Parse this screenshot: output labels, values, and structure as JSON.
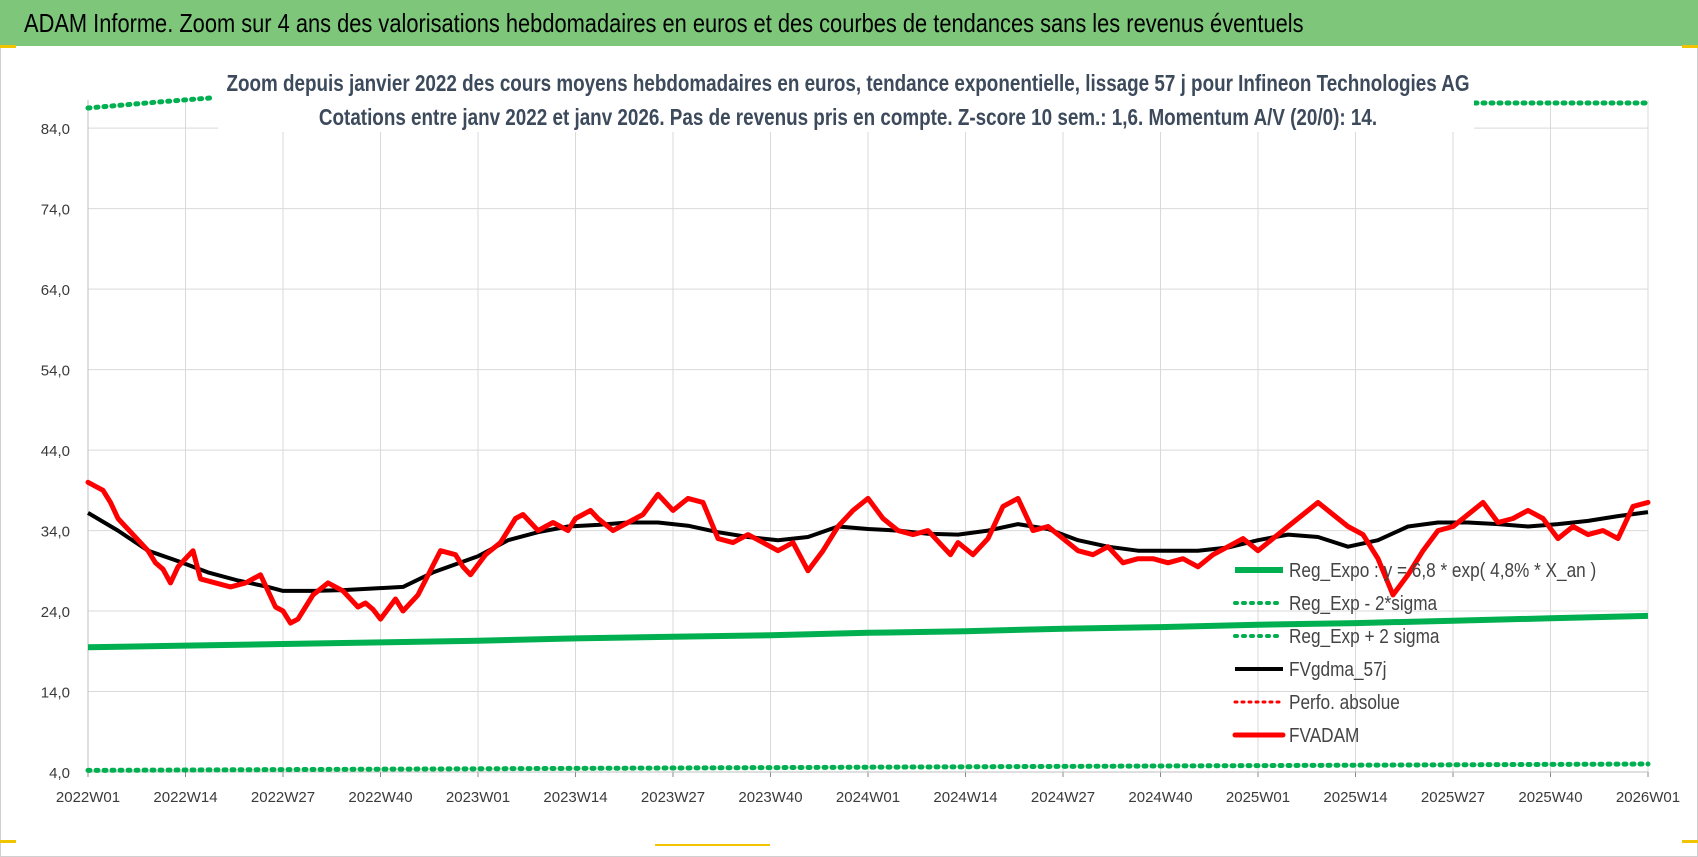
{
  "banner": {
    "title": "ADAM Informe. Zoom sur 4 ans des valorisations hebdomadaires en euros et des courbes de tendances sans les revenus éventuels"
  },
  "colors": {
    "banner_bg": "#7dc67a",
    "reg_expo": "#00b050",
    "fvgdma": "#000000",
    "fvadam": "#ff0000",
    "perfo": "#ff0000",
    "grid": "#d9d9d9",
    "title_text": "#3c4a5c"
  },
  "chart_data": {
    "type": "line",
    "title": "Zoom depuis janvier 2022 des cours moyens hebdomadaires en euros, tendance exponentielle, lissage 57 j pour Infineon Technologies AG",
    "subtitle": "Cotations entre janv 2022 et janv 2026. Pas de revenus pris en compte. Z-score 10 sem.: 1,6. Momentum A/V (20/0): 14.",
    "xlabel": "",
    "ylabel": "",
    "ylim": [
      4.0,
      87.5
    ],
    "y_ticks": [
      "84,0",
      "74,0",
      "64,0",
      "54,0",
      "44,0",
      "34,0",
      "24,0",
      "14,0",
      "4,0"
    ],
    "y_tick_values": [
      84,
      74,
      64,
      54,
      44,
      34,
      24,
      14,
      4
    ],
    "x_range_weeks": [
      0,
      208
    ],
    "x_ticks": [
      "2022W01",
      "2022W14",
      "2022W27",
      "2022W40",
      "2023W01",
      "2023W14",
      "2023W27",
      "2023W40",
      "2024W01",
      "2024W14",
      "2024W27",
      "2024W40",
      "2025W01",
      "2025W14",
      "2025W27",
      "2025W40",
      "2026W01"
    ],
    "grid": true,
    "legend_position": "center-right",
    "series": [
      {
        "name": "Reg_Expo : y = 6,8 * exp( 4,8% *  X_an )",
        "style": "solid-green",
        "x": [
          0,
          13,
          26,
          39,
          52,
          65,
          78,
          91,
          104,
          117,
          130,
          143,
          156,
          169,
          182,
          195,
          208
        ],
        "values": [
          19.5,
          19.7,
          19.9,
          20.1,
          20.3,
          20.6,
          20.8,
          21.0,
          21.3,
          21.5,
          21.8,
          22.0,
          22.3,
          22.5,
          22.8,
          23.1,
          23.4
        ]
      },
      {
        "name": "Reg_Exp - 2*sigma",
        "style": "dotted-green",
        "x": [
          0,
          26,
          52,
          78,
          104,
          130,
          156,
          182,
          208
        ],
        "values": [
          4.2,
          4.3,
          4.4,
          4.5,
          4.6,
          4.7,
          4.8,
          4.9,
          5.0
        ]
      },
      {
        "name": "Reg_Exp + 2 sigma",
        "style": "dotted-green",
        "x": [
          0,
          5,
          10,
          17
        ],
        "values": [
          86.5,
          86.9,
          87.3,
          87.8
        ]
      },
      {
        "name": "FVgdma_57j",
        "style": "solid-black",
        "x": [
          0,
          4,
          8,
          12,
          16,
          20,
          24,
          26,
          30,
          34,
          38,
          42,
          46,
          52,
          56,
          60,
          64,
          68,
          72,
          76,
          80,
          84,
          88,
          92,
          96,
          100,
          104,
          108,
          112,
          116,
          120,
          124,
          128,
          132,
          136,
          140,
          144,
          148,
          152,
          156,
          160,
          164,
          168,
          172,
          176,
          180,
          184,
          188,
          192,
          196,
          200,
          204,
          208
        ],
        "values": [
          36.2,
          34.0,
          31.5,
          30.2,
          28.8,
          27.8,
          27.0,
          26.5,
          26.5,
          26.6,
          26.8,
          27.0,
          28.8,
          30.8,
          32.8,
          33.8,
          34.5,
          34.7,
          35.0,
          35.0,
          34.6,
          33.8,
          33.2,
          32.8,
          33.2,
          34.5,
          34.2,
          34.0,
          33.6,
          33.5,
          34.0,
          34.8,
          34.2,
          32.8,
          32.0,
          31.5,
          31.5,
          31.5,
          31.9,
          32.8,
          33.5,
          33.2,
          32.0,
          32.8,
          34.5,
          35.0,
          35.0,
          34.8,
          34.5,
          34.8,
          35.2,
          35.8,
          36.3
        ]
      },
      {
        "name": "Perfo. absolue",
        "style": "dotted-red",
        "x": [],
        "values": []
      },
      {
        "name": "FVADAM",
        "style": "solid-red",
        "x": [
          0,
          2,
          3,
          4,
          6,
          8,
          9,
          10,
          11,
          12,
          13,
          14,
          15,
          17,
          19,
          21,
          23,
          25,
          26,
          27,
          28,
          29,
          30,
          32,
          34,
          36,
          37,
          38,
          39,
          41,
          42,
          44,
          47,
          49,
          50,
          51,
          53,
          55,
          57,
          58,
          60,
          62,
          64,
          65,
          66,
          67,
          68,
          70,
          72,
          74,
          76,
          78,
          80,
          82,
          84,
          86,
          88,
          90,
          92,
          94,
          96,
          98,
          100,
          102,
          104,
          106,
          108,
          110,
          112,
          114,
          115,
          116,
          118,
          120,
          122,
          123,
          124,
          126,
          128,
          130,
          132,
          134,
          136,
          138,
          140,
          142,
          144,
          146,
          148,
          150,
          152,
          154,
          156,
          158,
          160,
          162,
          164,
          166,
          168,
          170,
          172,
          174,
          176,
          178,
          180,
          182,
          184,
          186,
          188,
          190,
          192,
          194,
          196,
          198,
          200,
          202,
          204,
          206,
          208
        ],
        "values": [
          40.0,
          39.0,
          37.5,
          35.5,
          33.5,
          31.5,
          30.0,
          29.2,
          27.5,
          29.5,
          30.5,
          31.5,
          28.0,
          27.5,
          27.0,
          27.5,
          28.5,
          24.5,
          24.0,
          22.5,
          23.0,
          24.5,
          26.0,
          27.5,
          26.5,
          24.5,
          25.0,
          24.2,
          23.0,
          25.5,
          24.0,
          26.0,
          31.5,
          31.0,
          29.5,
          28.5,
          31.0,
          32.5,
          35.5,
          36.0,
          34.0,
          35.0,
          34.0,
          35.5,
          36.0,
          36.5,
          35.5,
          34.0,
          35.0,
          36.0,
          38.5,
          36.5,
          38.0,
          37.5,
          33.0,
          32.5,
          33.5,
          32.5,
          31.5,
          32.5,
          29.0,
          31.5,
          34.5,
          36.5,
          38.0,
          35.5,
          34.0,
          33.5,
          34.0,
          32.0,
          31.0,
          32.5,
          31.0,
          33.0,
          37.0,
          37.5,
          38.0,
          34.0,
          34.5,
          33.0,
          31.5,
          31.0,
          32.0,
          30.0,
          30.5,
          30.5,
          30.0,
          30.5,
          29.5,
          31.0,
          32.0,
          33.0,
          31.5,
          33.0,
          34.5,
          36.0,
          37.5,
          36.0,
          34.5,
          33.5,
          30.5,
          26.0,
          28.5,
          31.5,
          34.0,
          34.5,
          36.0,
          37.5,
          35.0,
          35.5,
          36.5,
          35.5,
          33.0,
          34.5,
          33.5,
          34.0,
          33.0,
          37.0,
          37.5
        ]
      }
    ]
  }
}
